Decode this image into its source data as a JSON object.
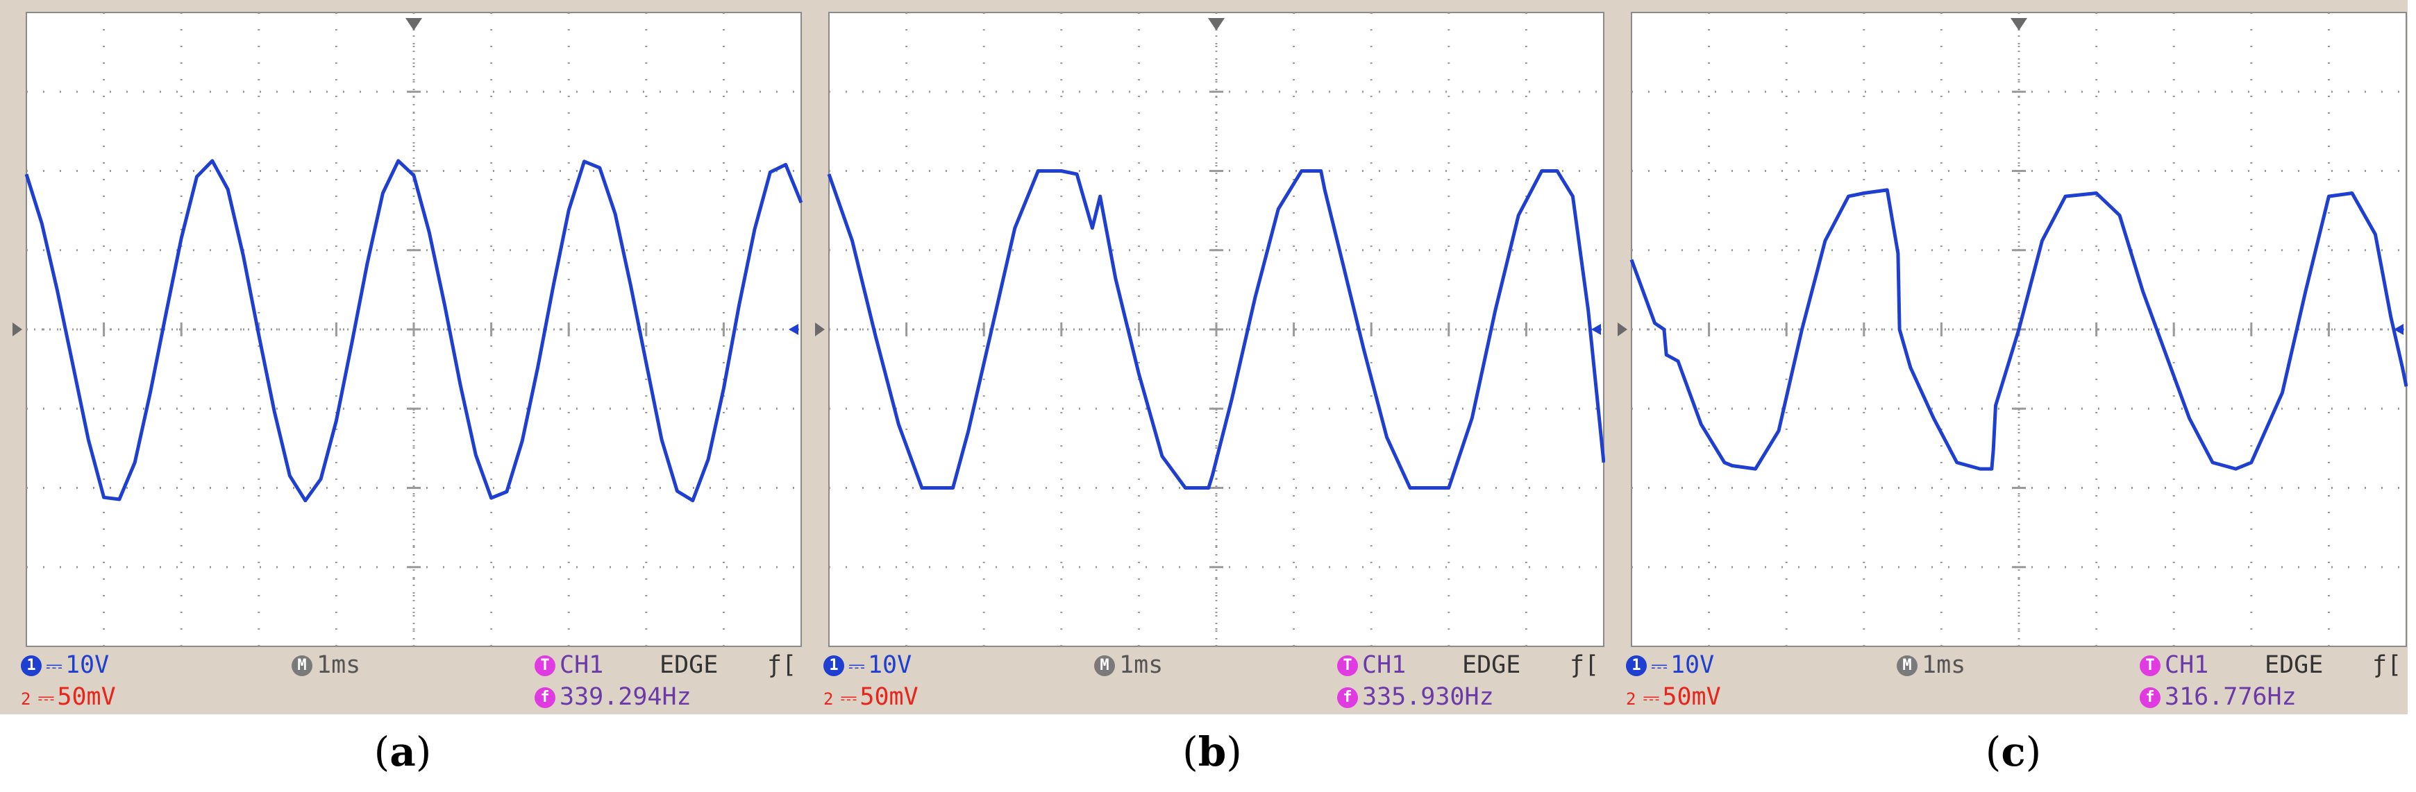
{
  "chart_data": [
    {
      "type": "line",
      "panel": "a",
      "caption_letter": "a",
      "x_unit": "ms",
      "x_range": [
        0,
        10
      ],
      "y_range": [
        -5,
        5
      ],
      "grid": true,
      "series": [
        {
          "x": [
            0,
            0.2,
            0.4,
            0.6,
            0.8,
            1,
            1.2,
            1.4,
            1.6,
            1.8,
            2,
            2.2,
            2.4,
            2.6,
            2.8,
            3,
            3.2,
            3.4,
            3.6,
            3.8,
            4,
            4.2,
            4.4,
            4.6,
            4.8,
            5,
            5.2,
            5.4,
            5.6,
            5.8,
            6,
            6.2,
            6.4,
            6.6,
            6.8,
            7,
            7.2,
            7.4,
            7.6,
            7.8,
            8,
            8.2,
            8.4,
            8.6,
            8.8,
            9,
            9.2,
            9.4,
            9.6,
            9.8,
            10
          ],
          "y": [
            2.45,
            1.67,
            0.61,
            -0.56,
            -1.74,
            -2.65,
            -2.68,
            -2.1,
            -0.99,
            0.24,
            1.44,
            2.41,
            2.66,
            2.21,
            1.16,
            -0.09,
            -1.29,
            -2.31,
            -2.7,
            -2.36,
            -1.44,
            -0.22,
            1.04,
            2.15,
            2.66,
            2.43,
            1.53,
            0.38,
            -0.87,
            -1.98,
            -2.66,
            -2.56,
            -1.76,
            -0.6,
            0.68,
            1.88,
            2.65,
            2.55,
            1.82,
            0.69,
            -0.53,
            -1.74,
            -2.55,
            -2.7,
            -2.05,
            -0.93,
            0.39,
            1.58,
            2.48,
            2.6,
            2.0
          ]
        }
      ],
      "status": {
        "ch1_scale": "10V",
        "ch2_scale": "50mV",
        "timebase": "1ms",
        "trig_source": "CH1",
        "trig_type": "EDGE",
        "trig_slope": "ƒ[",
        "frequency": "339.294Hz"
      }
    },
    {
      "type": "line",
      "panel": "b",
      "caption_letter": "b",
      "x_unit": "ms",
      "x_range": [
        0,
        10
      ],
      "y_range": [
        -5,
        5
      ],
      "grid": true,
      "series": [
        {
          "x": [
            0,
            0.3,
            0.6,
            0.9,
            1.2,
            1.5,
            1.6,
            1.8,
            2.1,
            2.4,
            2.7,
            3.0,
            3.2,
            3.4,
            3.5,
            3.7,
            4.0,
            4.3,
            4.6,
            4.9,
            4.95,
            5.2,
            5.5,
            5.8,
            6.1,
            6.35,
            6.4,
            6.6,
            6.9,
            7.2,
            7.5,
            7.8,
            8.0,
            8.3,
            8.6,
            8.9,
            9.2,
            9.4,
            9.6,
            9.8,
            10
          ],
          "y": [
            2.45,
            1.4,
            -0.1,
            -1.5,
            -2.5,
            -2.5,
            -2.5,
            -1.6,
            0.0,
            1.6,
            2.5,
            2.5,
            2.45,
            1.6,
            2.1,
            0.8,
            -0.7,
            -2.0,
            -2.5,
            -2.5,
            -2.3,
            -1.1,
            0.5,
            1.9,
            2.5,
            2.5,
            2.2,
            1.2,
            -0.3,
            -1.7,
            -2.5,
            -2.5,
            -2.5,
            -1.4,
            0.3,
            1.8,
            2.5,
            2.5,
            2.1,
            0.3,
            -2.1
          ]
        }
      ],
      "status": {
        "ch1_scale": "10V",
        "ch2_scale": "50mV",
        "timebase": "1ms",
        "trig_source": "CH1",
        "trig_type": "EDGE",
        "trig_slope": "ƒ[",
        "frequency": "335.930Hz"
      }
    },
    {
      "type": "line",
      "panel": "c",
      "caption_letter": "c",
      "x_unit": "ms",
      "x_range": [
        0,
        10
      ],
      "y_range": [
        -5,
        5
      ],
      "grid": true,
      "series": [
        {
          "x": [
            0,
            0.3,
            0.42,
            0.45,
            0.6,
            0.9,
            1.2,
            1.3,
            1.6,
            1.9,
            2.2,
            2.5,
            2.8,
            3.0,
            3.3,
            3.44,
            3.46,
            3.6,
            3.9,
            4.2,
            4.5,
            4.65,
            4.67,
            4.7,
            5.0,
            5.3,
            5.6,
            6.0,
            6.3,
            6.6,
            6.9,
            7.2,
            7.5,
            7.8,
            8.0,
            8.4,
            8.7,
            9.0,
            9.3,
            9.6,
            9.8,
            9.95,
            10
          ],
          "y": [
            1.1,
            0.1,
            0.0,
            -0.4,
            -0.5,
            -1.5,
            -2.1,
            -2.15,
            -2.2,
            -1.6,
            0.0,
            1.4,
            2.1,
            2.15,
            2.2,
            1.2,
            0.0,
            -0.6,
            -1.4,
            -2.1,
            -2.2,
            -2.2,
            -1.9,
            -1.2,
            0.0,
            1.4,
            2.1,
            2.15,
            1.8,
            0.6,
            -0.4,
            -1.4,
            -2.1,
            -2.2,
            -2.1,
            -1.0,
            0.6,
            2.1,
            2.15,
            1.5,
            0.2,
            -0.6,
            -0.9
          ]
        }
      ],
      "status": {
        "ch1_scale": "10V",
        "ch2_scale": "50mV",
        "timebase": "1ms",
        "trig_source": "CH1",
        "trig_type": "EDGE",
        "trig_slope": "ƒ[",
        "frequency": "316.776Hz"
      }
    }
  ],
  "status_glyphs": {
    "ch1_badge": "1",
    "ch2_label": "2",
    "timebase_badge": "M",
    "trig_badge": "T",
    "freq_badge": "f",
    "dc": "⎓"
  },
  "colors": {
    "trace": "#1e3fd0",
    "grid": "#9a9a9a",
    "screen": "#ffffff",
    "frame": "#ddd2c6",
    "ch2": "#e8241c",
    "trig": "#e03be0"
  }
}
